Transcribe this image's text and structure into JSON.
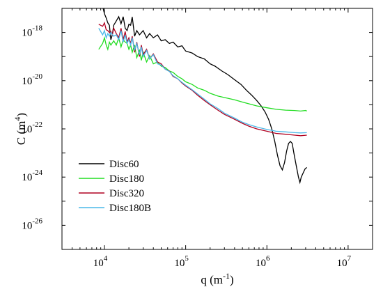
{
  "chart_data": {
    "type": "line",
    "xlabel": {
      "base": "q (m",
      "sup": "-1",
      "tail": ")"
    },
    "ylabel": {
      "base": "C (m",
      "sup": "4",
      "tail": ")"
    },
    "xscale": "log",
    "yscale": "log",
    "xlim": [
      3000,
      20000000
    ],
    "ylim": [
      1e-27,
      1e-17
    ],
    "xticks": [
      {
        "value": 10000,
        "base": "10",
        "exp": "4"
      },
      {
        "value": 100000,
        "base": "10",
        "exp": "5"
      },
      {
        "value": 1000000,
        "base": "10",
        "exp": "6"
      },
      {
        "value": 10000000,
        "base": "10",
        "exp": "7"
      }
    ],
    "yticks": [
      {
        "value": 1e-18,
        "base": "10",
        "exp": "-18"
      },
      {
        "value": 1e-20,
        "base": "10",
        "exp": "-20"
      },
      {
        "value": 1e-22,
        "base": "10",
        "exp": "-22"
      },
      {
        "value": 1e-24,
        "base": "10",
        "exp": "-24"
      },
      {
        "value": 1e-26,
        "base": "10",
        "exp": "-26"
      }
    ],
    "grid": false,
    "legend_position": "bottom-left",
    "series": [
      {
        "name": "Disc60",
        "color": "#000000",
        "points": [
          [
            8500,
            1e-17
          ],
          [
            9500,
            1.2e-17
          ],
          [
            10000,
            6e-18
          ],
          [
            10500,
            4e-18
          ],
          [
            11000,
            2.5e-18
          ],
          [
            11500,
            2e-18
          ],
          [
            12000,
            5e-19
          ],
          [
            12500,
            8e-19
          ],
          [
            13000,
            2e-18
          ],
          [
            14000,
            3e-18
          ],
          [
            15000,
            4.5e-18
          ],
          [
            16000,
            2.3e-18
          ],
          [
            17000,
            4.5e-18
          ],
          [
            18000,
            1.5e-18
          ],
          [
            19000,
            1.2e-18
          ],
          [
            20000,
            2.2e-18
          ],
          [
            21000,
            2e-18
          ],
          [
            22000,
            4.4e-18
          ],
          [
            23500,
            7e-19
          ],
          [
            25000,
            1.2e-18
          ],
          [
            27000,
            8e-19
          ],
          [
            30000,
            1.2e-18
          ],
          [
            33000,
            6e-19
          ],
          [
            36000,
            9e-19
          ],
          [
            40000,
            6e-19
          ],
          [
            45000,
            8e-19
          ],
          [
            50000,
            4.5e-19
          ],
          [
            56000,
            5e-19
          ],
          [
            63000,
            3.5e-19
          ],
          [
            70000,
            4e-19
          ],
          [
            80000,
            2.5e-19
          ],
          [
            90000,
            2.8e-19
          ],
          [
            100000,
            1.7e-19
          ],
          [
            120000,
            1.4e-19
          ],
          [
            140000,
            1e-19
          ],
          [
            170000,
            8e-20
          ],
          [
            200000,
            5e-20
          ],
          [
            230000,
            4e-20
          ],
          [
            280000,
            2.5e-20
          ],
          [
            330000,
            1.8e-20
          ],
          [
            400000,
            1.1e-20
          ],
          [
            480000,
            7e-21
          ],
          [
            560000,
            4e-21
          ],
          [
            650000,
            2.5e-21
          ],
          [
            750000,
            1.5e-21
          ],
          [
            850000,
            9e-22
          ],
          [
            950000,
            5e-22
          ],
          [
            1050000,
            2.5e-22
          ],
          [
            1150000,
            1e-22
          ],
          [
            1250000,
            3e-23
          ],
          [
            1350000,
            8e-24
          ],
          [
            1450000,
            3e-24
          ],
          [
            1550000,
            2e-24
          ],
          [
            1650000,
            4e-24
          ],
          [
            1750000,
            1.2e-23
          ],
          [
            1850000,
            2.5e-23
          ],
          [
            1950000,
            3e-23
          ],
          [
            2050000,
            2.5e-23
          ],
          [
            2150000,
            1e-23
          ],
          [
            2300000,
            3e-24
          ],
          [
            2450000,
            1e-24
          ],
          [
            2550000,
            6e-25
          ],
          [
            2650000,
            1e-24
          ],
          [
            2800000,
            1.5e-24
          ],
          [
            2950000,
            2.2e-24
          ],
          [
            3100000,
            2.5e-24
          ]
        ]
      },
      {
        "name": "Disc180",
        "color": "#22dd22",
        "points": [
          [
            8500,
            2e-19
          ],
          [
            9500,
            3.5e-19
          ],
          [
            10000,
            6e-19
          ],
          [
            10500,
            3e-19
          ],
          [
            11000,
            2e-19
          ],
          [
            11500,
            4e-19
          ],
          [
            12000,
            3e-19
          ],
          [
            13000,
            4.5e-19
          ],
          [
            14000,
            3e-19
          ],
          [
            15000,
            6e-19
          ],
          [
            16000,
            2.5e-19
          ],
          [
            17000,
            5e-19
          ],
          [
            18000,
            4e-19
          ],
          [
            19000,
            3.5e-19
          ],
          [
            20000,
            2e-19
          ],
          [
            21000,
            3e-19
          ],
          [
            22000,
            1.5e-19
          ],
          [
            23500,
            3e-19
          ],
          [
            25000,
            9e-20
          ],
          [
            27000,
            1.8e-19
          ],
          [
            28500,
            7e-20
          ],
          [
            30000,
            1.5e-19
          ],
          [
            33000,
            6e-20
          ],
          [
            36000,
            1.1e-19
          ],
          [
            40000,
            5e-20
          ],
          [
            45000,
            6e-20
          ],
          [
            50000,
            4e-20
          ],
          [
            56000,
            3.5e-20
          ],
          [
            63000,
            2.5e-20
          ],
          [
            70000,
            2.2e-20
          ],
          [
            80000,
            1.5e-20
          ],
          [
            90000,
            1.2e-20
          ],
          [
            100000,
            9e-21
          ],
          [
            120000,
            7e-21
          ],
          [
            140000,
            5e-21
          ],
          [
            170000,
            4e-21
          ],
          [
            200000,
            3e-21
          ],
          [
            250000,
            2.3e-21
          ],
          [
            300000,
            2e-21
          ],
          [
            400000,
            1.6e-21
          ],
          [
            500000,
            1.3e-21
          ],
          [
            600000,
            1.1e-21
          ],
          [
            750000,
            9e-22
          ],
          [
            1000000,
            7.5e-22
          ],
          [
            1300000,
            6.5e-22
          ],
          [
            1700000,
            6e-22
          ],
          [
            2200000,
            5.8e-22
          ],
          [
            2600000,
            5.5e-22
          ],
          [
            3000000,
            5.8e-22
          ],
          [
            3100000,
            5.5e-22
          ]
        ]
      },
      {
        "name": "Disc320",
        "color": "#b00020",
        "points": [
          [
            8500,
            2.2e-18
          ],
          [
            9500,
            1.8e-18
          ],
          [
            10000,
            2.5e-18
          ],
          [
            10500,
            1.3e-18
          ],
          [
            11000,
            1.2e-18
          ],
          [
            11500,
            1e-18
          ],
          [
            12000,
            1.1e-18
          ],
          [
            12500,
            8e-19
          ],
          [
            13000,
            1.5e-18
          ],
          [
            14000,
            9e-19
          ],
          [
            15000,
            6e-19
          ],
          [
            16000,
            1.5e-18
          ],
          [
            17000,
            5e-19
          ],
          [
            18000,
            1.1e-18
          ],
          [
            19000,
            4e-19
          ],
          [
            20000,
            6e-19
          ],
          [
            21000,
            3.5e-19
          ],
          [
            22000,
            7e-19
          ],
          [
            23500,
            1.5e-19
          ],
          [
            25000,
            4e-19
          ],
          [
            27000,
            1e-19
          ],
          [
            28500,
            3e-19
          ],
          [
            30000,
            1.2e-19
          ],
          [
            33000,
            2e-19
          ],
          [
            36000,
            8e-20
          ],
          [
            40000,
            1.3e-19
          ],
          [
            45000,
            6e-20
          ],
          [
            50000,
            5e-20
          ],
          [
            56000,
            3e-20
          ],
          [
            63000,
            2.5e-20
          ],
          [
            70000,
            1.5e-20
          ],
          [
            80000,
            1.2e-20
          ],
          [
            90000,
            8e-21
          ],
          [
            100000,
            6e-21
          ],
          [
            120000,
            4e-21
          ],
          [
            140000,
            2.5e-21
          ],
          [
            170000,
            1.5e-21
          ],
          [
            200000,
            1e-21
          ],
          [
            250000,
            6e-22
          ],
          [
            300000,
            4e-22
          ],
          [
            400000,
            2.5e-22
          ],
          [
            500000,
            1.7e-22
          ],
          [
            600000,
            1.3e-22
          ],
          [
            750000,
            1e-22
          ],
          [
            1000000,
            8e-23
          ],
          [
            1300000,
            6.5e-23
          ],
          [
            1700000,
            6e-23
          ],
          [
            2200000,
            5.5e-23
          ],
          [
            2600000,
            5.2e-23
          ],
          [
            3100000,
            5.5e-23
          ]
        ]
      },
      {
        "name": "Disc180B",
        "color": "#4ab8e8",
        "points": [
          [
            8500,
            1.5e-18
          ],
          [
            9500,
            8e-19
          ],
          [
            10000,
            1.2e-18
          ],
          [
            10500,
            6e-19
          ],
          [
            11000,
            9e-19
          ],
          [
            11500,
            7e-19
          ],
          [
            12000,
            1e-18
          ],
          [
            13000,
            7e-19
          ],
          [
            14000,
            8e-19
          ],
          [
            15000,
            5e-19
          ],
          [
            16000,
            1.2e-18
          ],
          [
            17000,
            4e-19
          ],
          [
            18000,
            8e-19
          ],
          [
            19000,
            3.5e-19
          ],
          [
            20000,
            5e-19
          ],
          [
            21000,
            3e-19
          ],
          [
            22000,
            6e-19
          ],
          [
            23500,
            1.8e-19
          ],
          [
            25000,
            3.5e-19
          ],
          [
            27000,
            1.2e-19
          ],
          [
            28500,
            2.5e-19
          ],
          [
            30000,
            1e-19
          ],
          [
            33000,
            1.8e-19
          ],
          [
            36000,
            8e-20
          ],
          [
            40000,
            1.2e-19
          ],
          [
            45000,
            5e-20
          ],
          [
            50000,
            4.5e-20
          ],
          [
            56000,
            3e-20
          ],
          [
            63000,
            2.4e-20
          ],
          [
            70000,
            1.6e-20
          ],
          [
            80000,
            1.2e-20
          ],
          [
            90000,
            8.5e-21
          ],
          [
            100000,
            6.5e-21
          ],
          [
            120000,
            4.2e-21
          ],
          [
            140000,
            2.8e-21
          ],
          [
            170000,
            1.7e-21
          ],
          [
            200000,
            1.1e-21
          ],
          [
            250000,
            7e-22
          ],
          [
            300000,
            4.5e-22
          ],
          [
            400000,
            2.8e-22
          ],
          [
            500000,
            1.9e-22
          ],
          [
            600000,
            1.5e-22
          ],
          [
            750000,
            1.2e-22
          ],
          [
            1000000,
            9.5e-23
          ],
          [
            1300000,
            8e-23
          ],
          [
            1700000,
            7.5e-23
          ],
          [
            2200000,
            7e-23
          ],
          [
            2600000,
            6.8e-23
          ],
          [
            3100000,
            7e-23
          ]
        ]
      }
    ]
  }
}
